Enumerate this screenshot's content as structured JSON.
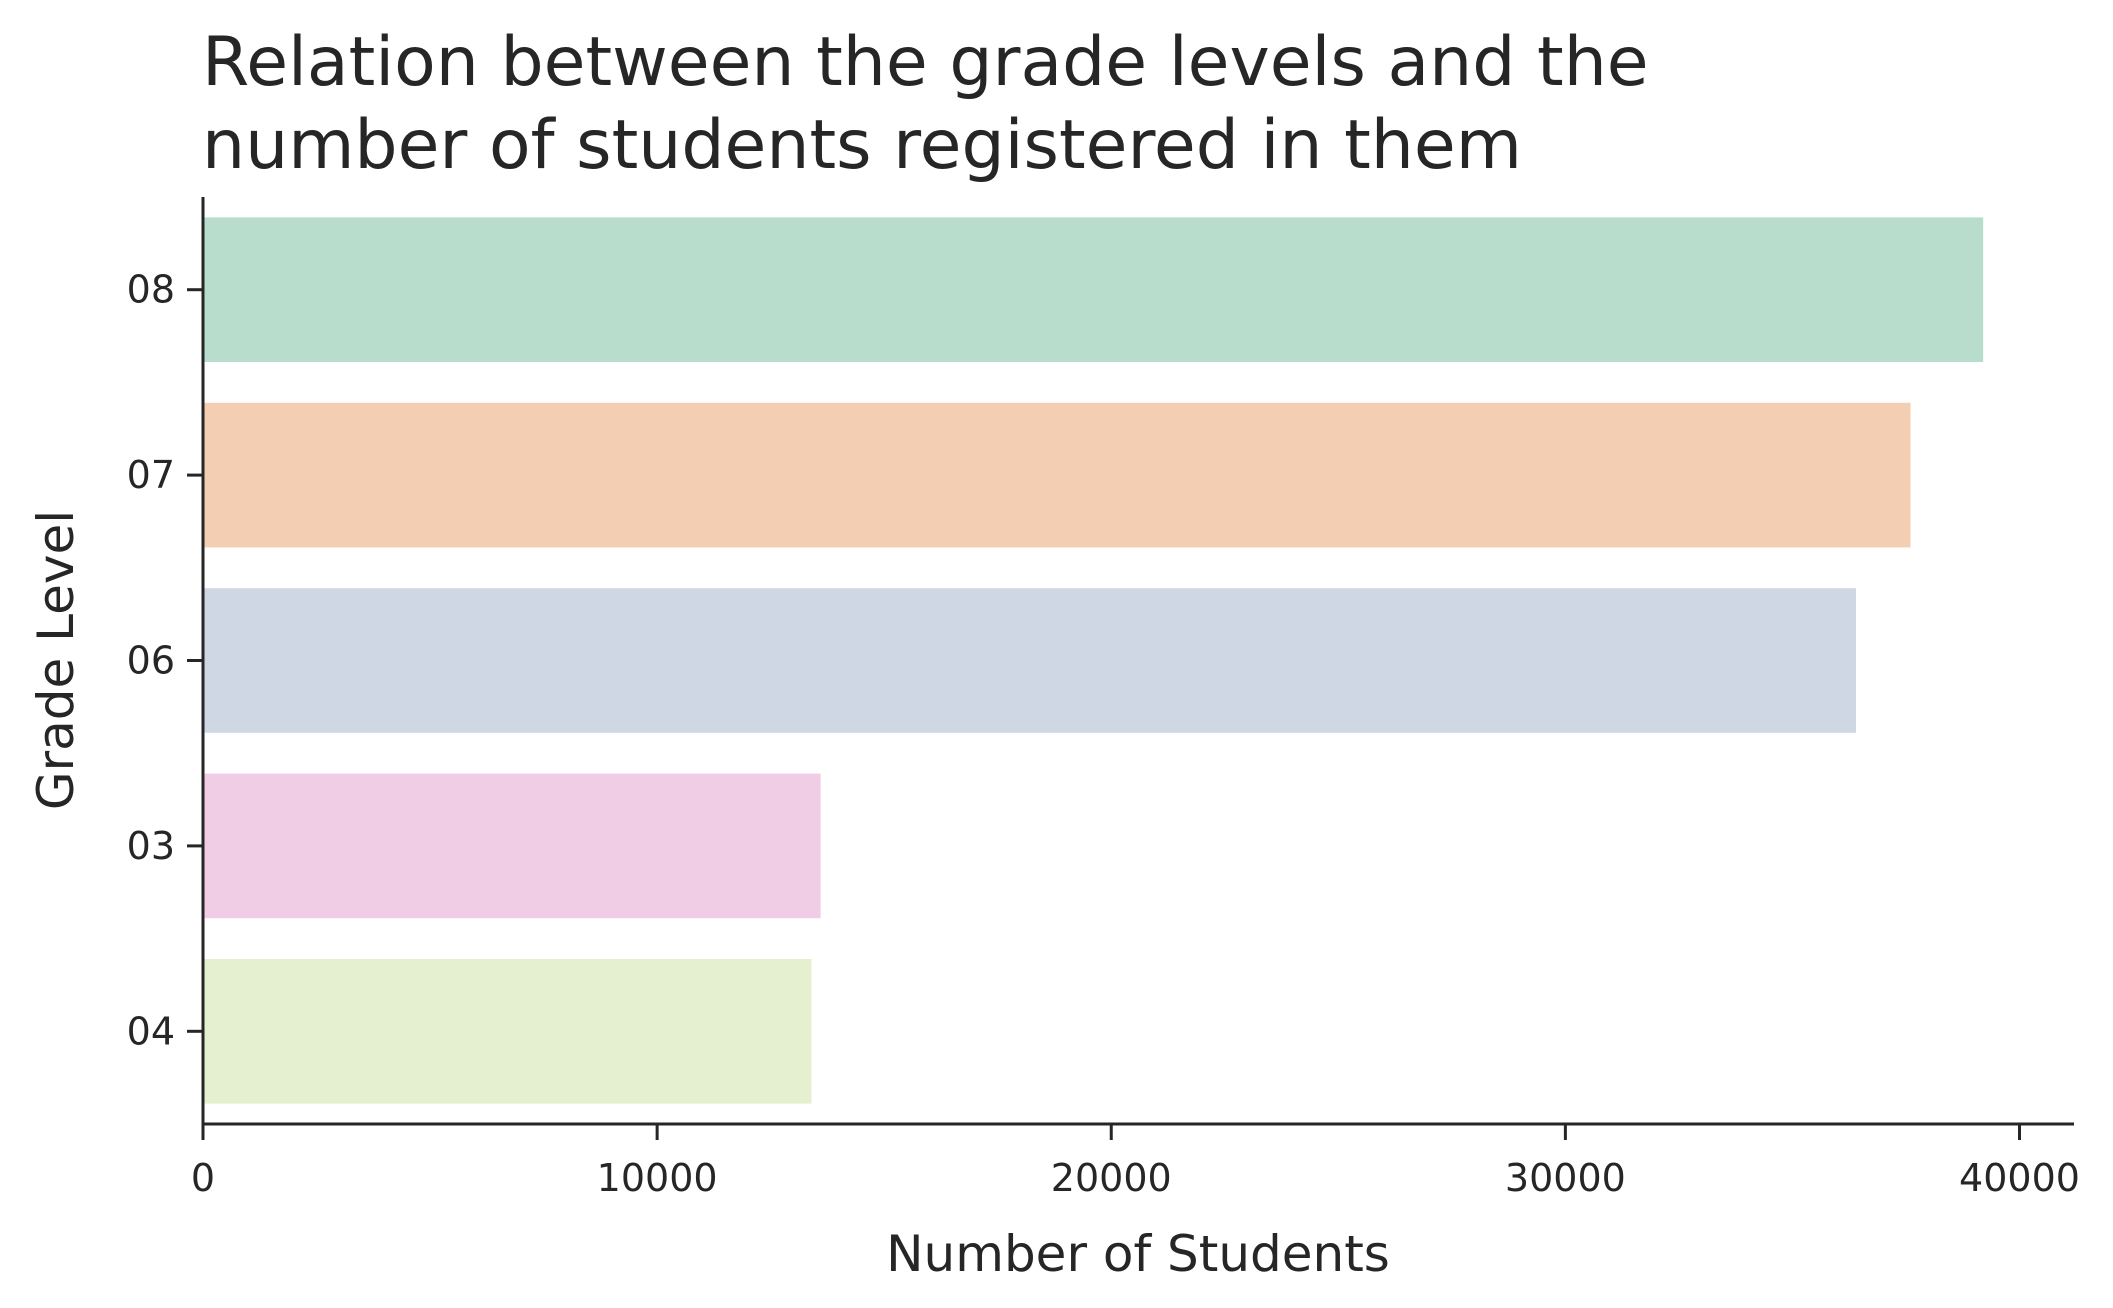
{
  "chart_data": {
    "type": "bar",
    "orientation": "horizontal",
    "title": [
      "Relation between the grade levels and the",
      "number of students registered in them"
    ],
    "xlabel": "Number of Students",
    "ylabel": "Grade Level",
    "categories": [
      "08",
      "07",
      "06",
      "03",
      "04"
    ],
    "values": [
      39200,
      37600,
      36400,
      13600,
      13400
    ],
    "colors": [
      "#b9ddcc",
      "#f4ceb3",
      "#d0d7e4",
      "#f0cde4",
      "#e4f0cf"
    ],
    "xlim": [
      0,
      41200
    ],
    "xticks": [
      0,
      10000,
      20000,
      30000,
      40000
    ],
    "xtick_labels": [
      "0",
      "10000",
      "20000",
      "30000",
      "40000"
    ],
    "grid": false,
    "legend": "none"
  }
}
